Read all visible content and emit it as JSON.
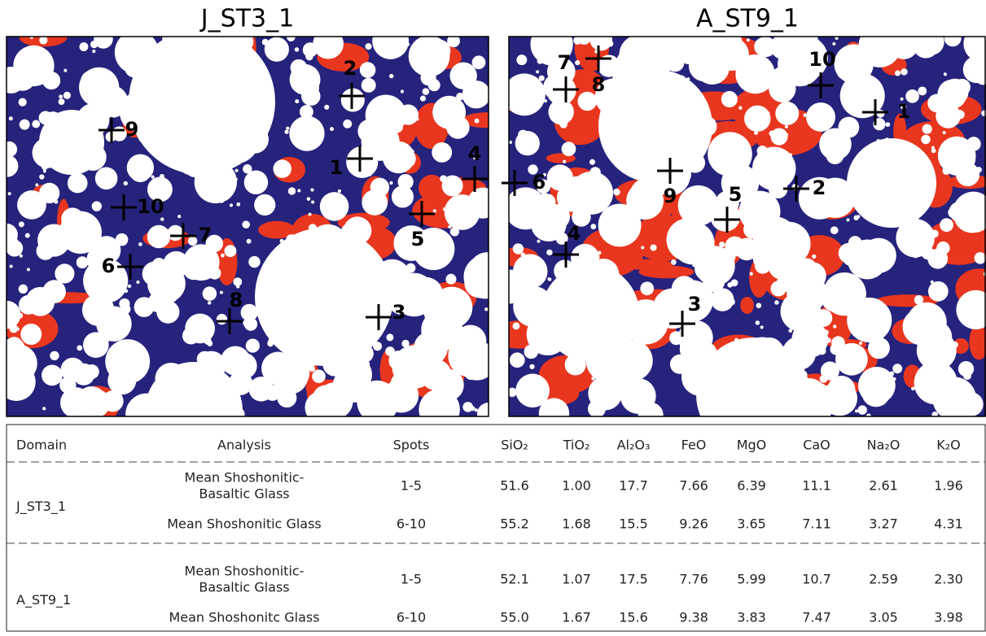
{
  "panels": [
    {
      "title": "J_ST3_1",
      "spots": [
        "2",
        "1",
        "4",
        "5",
        "3",
        "9",
        "10",
        "7",
        "6",
        "8"
      ]
    },
    {
      "title": "A_ST9_1",
      "spots": [
        "7",
        "8",
        "10",
        "1",
        "6",
        "9",
        "2",
        "5",
        "4",
        "3"
      ]
    }
  ],
  "table": {
    "headers": [
      "Domain",
      "Analysis",
      "Spots",
      "SiO₂",
      "TiO₂",
      "Al₂O₃",
      "FeO",
      "MgO",
      "CaO",
      "Na₂O",
      "K₂O"
    ],
    "groups": [
      {
        "domain": "J_ST3_1",
        "rows": [
          {
            "analysis": [
              "Mean Shoshonitic-",
              "Basaltic Glass"
            ],
            "spots": "1-5",
            "values": [
              "51.6",
              "1.00",
              "17.7",
              "7.66",
              "6.39",
              "11.1",
              "2.61",
              "1.96"
            ]
          },
          {
            "analysis": [
              "Mean Shoshonitic Glass"
            ],
            "spots": "6-10",
            "values": [
              "55.2",
              "1.68",
              "15.5",
              "9.26",
              "3.65",
              "7.11",
              "3.27",
              "4.31"
            ]
          }
        ]
      },
      {
        "domain": "A_ST9_1",
        "rows": [
          {
            "analysis": [
              "Mean Shoshonitic-",
              "Basaltic Glass"
            ],
            "spots": "1-5",
            "values": [
              "52.1",
              "1.07",
              "17.5",
              "7.76",
              "5.99",
              "10.7",
              "2.59",
              "2.30"
            ]
          },
          {
            "analysis": [
              "Mean Shoshonitc Glass"
            ],
            "spots": "6-10",
            "values": [
              "55.0",
              "1.67",
              "15.6",
              "9.38",
              "3.83",
              "7.47",
              "3.05",
              "3.98"
            ]
          }
        ]
      }
    ]
  }
}
